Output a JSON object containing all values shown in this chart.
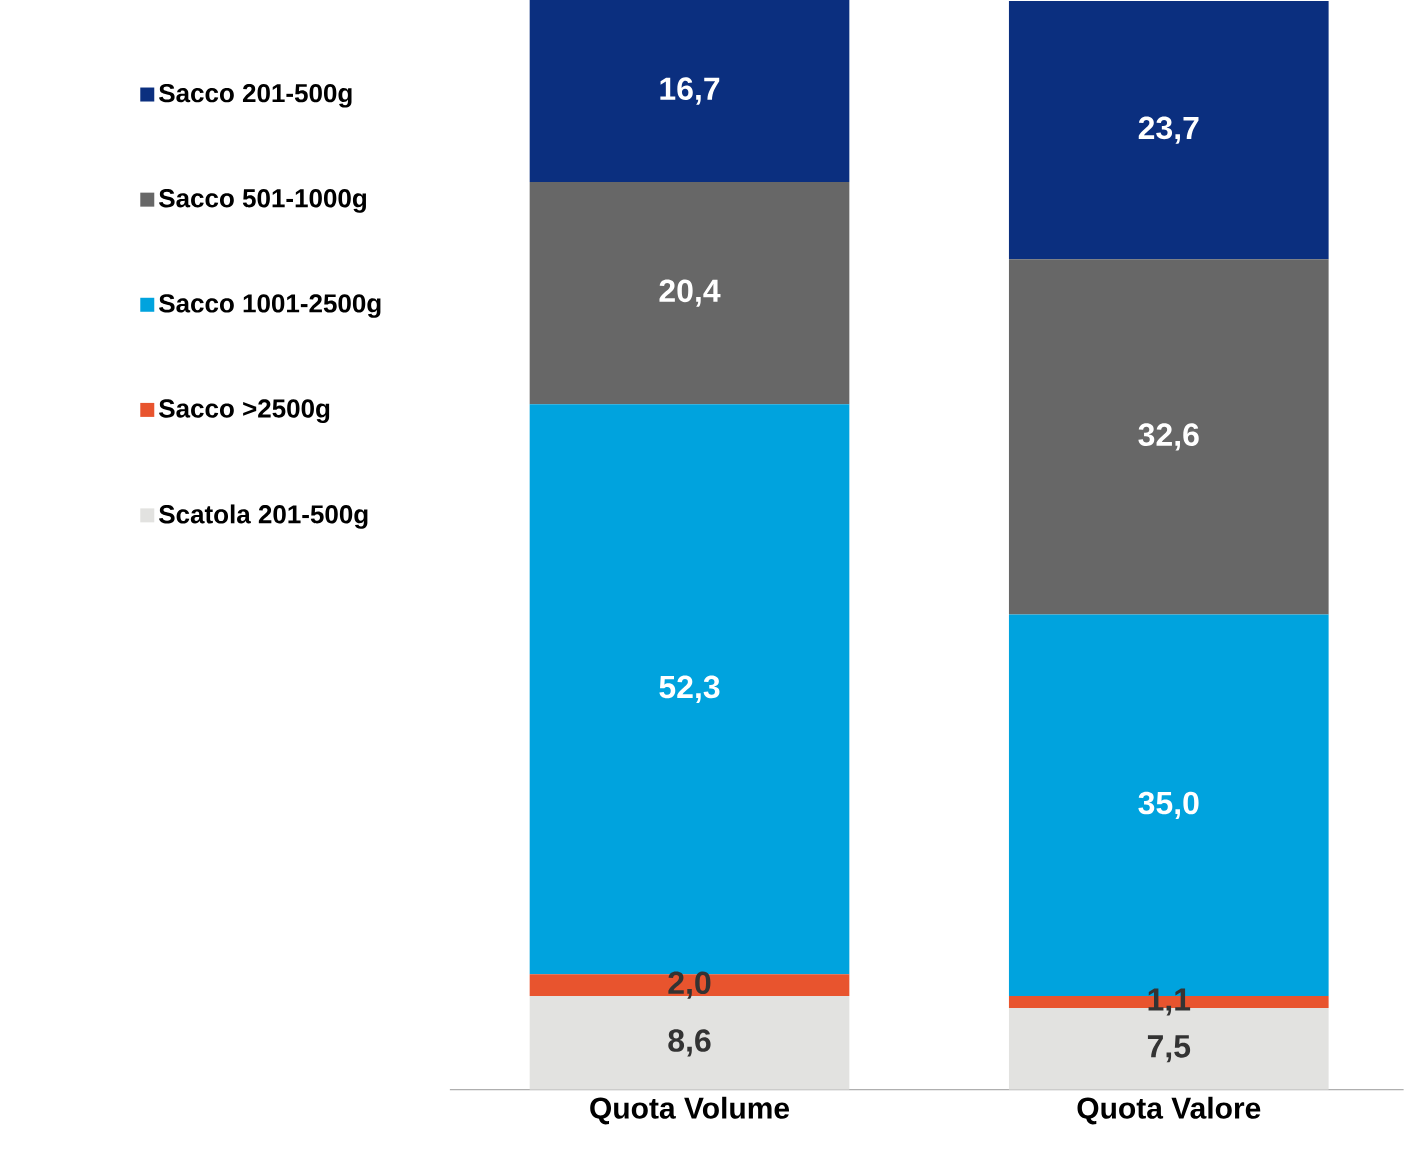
{
  "chart_data": {
    "type": "bar",
    "stacked": true,
    "categories": [
      "Quota Volume",
      "Quota Valore"
    ],
    "series": [
      {
        "name": "Scatola 201-500g",
        "color": "#e2e2e0",
        "values": [
          8.6,
          7.5
        ],
        "value_labels": [
          "8,6",
          "7,5"
        ]
      },
      {
        "name": "Sacco >2500g",
        "color": "#e8542e",
        "values": [
          2.0,
          1.1
        ],
        "value_labels": [
          "2,0",
          "1,1"
        ]
      },
      {
        "name": "Sacco 1001-2500g",
        "color": "#00a3de",
        "values": [
          52.3,
          35.0
        ],
        "value_labels": [
          "52,3",
          "35,0"
        ]
      },
      {
        "name": "Sacco 501-1000g",
        "color": "#676767",
        "values": [
          20.4,
          32.6
        ],
        "value_labels": [
          "20,4",
          "32,6"
        ]
      },
      {
        "name": "Sacco 201-500g",
        "color": "#0b2f7f",
        "values": [
          16.7,
          23.7
        ],
        "value_labels": [
          "16,7",
          "23,7"
        ]
      }
    ],
    "legend": "left"
  }
}
